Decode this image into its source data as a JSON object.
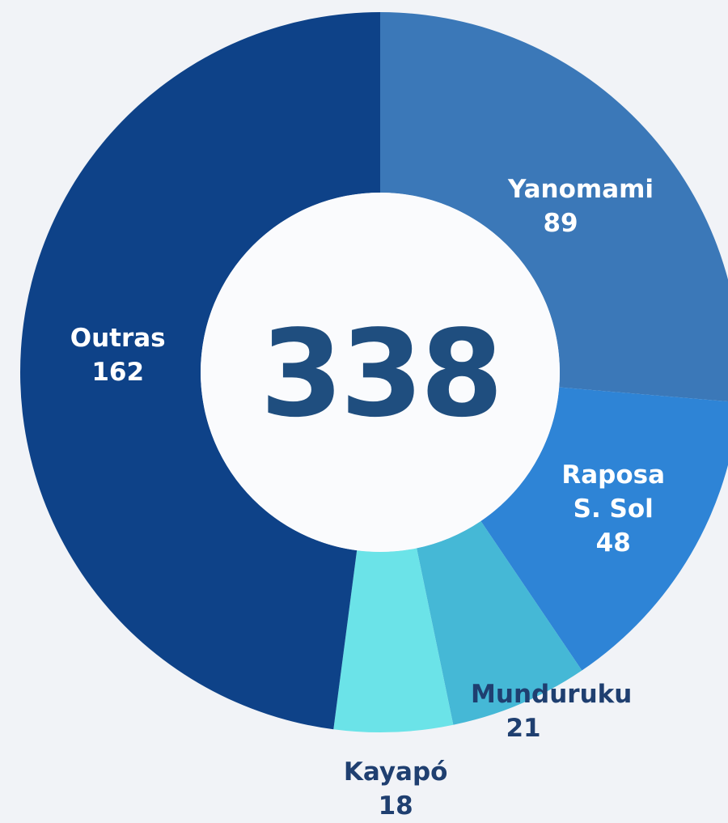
{
  "chart_data": {
    "type": "donut",
    "categories": [
      "Yanomami",
      "Raposa S. Sol",
      "Munduruku",
      "Kayapó",
      "Outras"
    ],
    "values": [
      89,
      48,
      21,
      18,
      162
    ],
    "colors": [
      "#3b78b8",
      "#2e84d6",
      "#45b8d6",
      "#6be3e8",
      "#0e4288"
    ],
    "total": 338
  }
}
